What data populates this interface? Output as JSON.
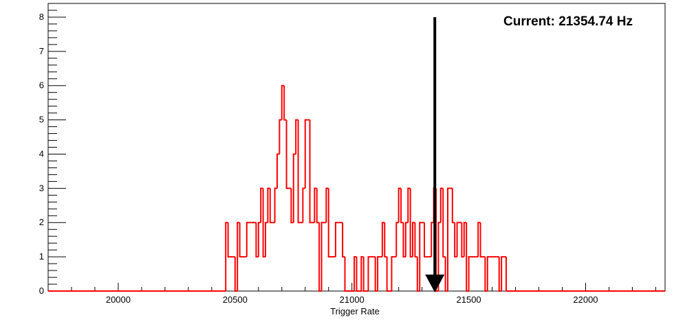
{
  "chart_data": {
    "type": "histogram",
    "title": "",
    "annotation": "Current: 21354.74 Hz",
    "xlabel": "Trigger Rate",
    "ylabel": "",
    "xlim": [
      19700,
      22340
    ],
    "ylim": [
      0,
      8.4
    ],
    "x_ticks": [
      20000,
      20500,
      21000,
      21500,
      22000
    ],
    "y_ticks": [
      0,
      1,
      2,
      3,
      4,
      5,
      6,
      7,
      8
    ],
    "grid": false,
    "legend": "none",
    "marker": {
      "x": 21354.74,
      "y_from": 8,
      "y_to": 0
    },
    "bin_width": 10,
    "bin_start": 20460,
    "series": [
      {
        "values": [
          2,
          1,
          1,
          1,
          0,
          2,
          1,
          1,
          1,
          2,
          2,
          2,
          2,
          1,
          2,
          3,
          1,
          2,
          3,
          2,
          2,
          3,
          4,
          5,
          6,
          5,
          3,
          3,
          2,
          4,
          5,
          2,
          2,
          3,
          5,
          5,
          2,
          2,
          3,
          2,
          0,
          2,
          2,
          3,
          1,
          1,
          1,
          2,
          2,
          2,
          1,
          0,
          0,
          0,
          0,
          1,
          0,
          0,
          1,
          0,
          0,
          1,
          1,
          1,
          0,
          1,
          1,
          2,
          1,
          0,
          0,
          1,
          1,
          2,
          3,
          2,
          1,
          2,
          3,
          1,
          2,
          1,
          0,
          2,
          2,
          1,
          1,
          1,
          2,
          3,
          0,
          2,
          3,
          1,
          0,
          3,
          3,
          2,
          1,
          2,
          2,
          1,
          2,
          0,
          1,
          1,
          1,
          1,
          2,
          1,
          1,
          0,
          1,
          1,
          1,
          1,
          1,
          0,
          1,
          1
        ]
      }
    ],
    "colors": {
      "series": "#ff0000",
      "marker": "#000000",
      "axes": "#000000"
    }
  }
}
